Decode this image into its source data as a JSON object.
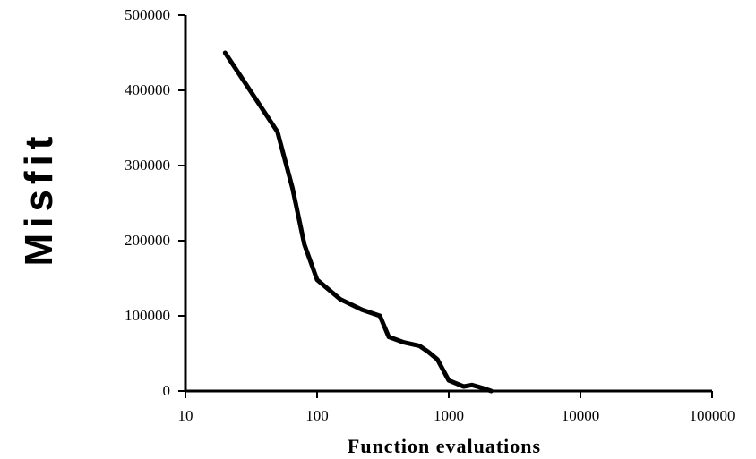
{
  "chart_data": {
    "type": "line",
    "title": "",
    "xlabel": "Function evaluations",
    "ylabel": "Misfit",
    "xscale": "log",
    "xlim": [
      10,
      100000
    ],
    "ylim": [
      0,
      500000
    ],
    "grid": false,
    "legend": "none",
    "x_ticks": [
      10,
      100,
      1000,
      10000,
      100000
    ],
    "x_tick_labels": [
      "10",
      "100",
      "1000",
      "10000",
      "100000"
    ],
    "y_ticks": [
      0,
      100000,
      200000,
      300000,
      400000,
      500000
    ],
    "y_tick_labels": [
      "0",
      "100000",
      "200000",
      "300000",
      "400000",
      "500000"
    ],
    "series": [
      {
        "color": "#000000",
        "x": [
          20,
          50,
          65,
          80,
          100,
          150,
          220,
          300,
          350,
          450,
          600,
          700,
          820,
          1000,
          1300,
          1500,
          1800,
          2100
        ],
        "y": [
          450000,
          345000,
          270000,
          195000,
          148000,
          122000,
          108000,
          100000,
          72000,
          65000,
          60000,
          52000,
          42000,
          14000,
          6000,
          8000,
          4000,
          0
        ]
      }
    ]
  }
}
